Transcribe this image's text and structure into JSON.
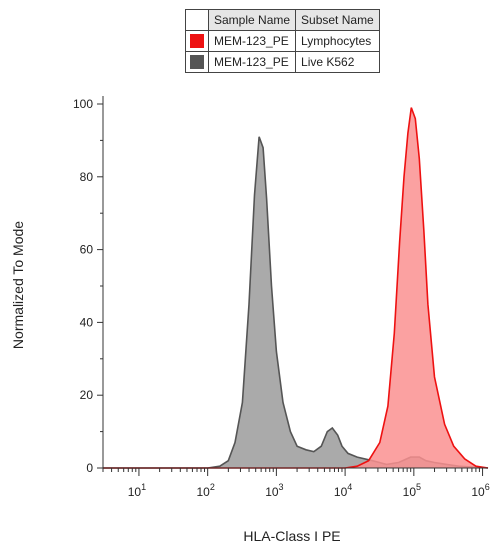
{
  "legend": {
    "headers": [
      "Sample Name",
      "Subset Name"
    ],
    "rows": [
      {
        "color": "#ee1111",
        "sample": "MEM-123_PE",
        "subset": "Lymphocytes"
      },
      {
        "color": "#555555",
        "sample": "MEM-123_PE",
        "subset": "Live K562"
      }
    ]
  },
  "chart_data": {
    "type": "area",
    "xlabel": "HLA-Class I PE",
    "ylabel": "Normalized To Mode",
    "xscale": "log",
    "xlim": [
      3,
      1200000
    ],
    "ylim": [
      0,
      100
    ],
    "yticks": [
      0,
      20,
      40,
      60,
      80,
      100
    ],
    "xticks": [
      {
        "value": 10,
        "base": "10",
        "exp": "1"
      },
      {
        "value": 100,
        "base": "10",
        "exp": "2"
      },
      {
        "value": 1000,
        "base": "10",
        "exp": "3"
      },
      {
        "value": 10000,
        "base": "10",
        "exp": "4"
      },
      {
        "value": 100000,
        "base": "10",
        "exp": "5"
      },
      {
        "value": 1000000,
        "base": "10",
        "exp": "6"
      }
    ],
    "grid": false,
    "series": [
      {
        "name": "Live K562",
        "fill": "#aaaaaa",
        "stroke": "#555555",
        "points": [
          [
            3,
            0
          ],
          [
            100,
            0
          ],
          [
            150,
            0.5
          ],
          [
            200,
            2
          ],
          [
            250,
            7
          ],
          [
            320,
            18
          ],
          [
            400,
            45
          ],
          [
            480,
            75
          ],
          [
            560,
            91
          ],
          [
            640,
            88
          ],
          [
            720,
            74
          ],
          [
            850,
            50
          ],
          [
            1000,
            32
          ],
          [
            1250,
            18
          ],
          [
            1600,
            10
          ],
          [
            2000,
            6
          ],
          [
            2700,
            5
          ],
          [
            3500,
            4.5
          ],
          [
            4500,
            6
          ],
          [
            5500,
            10
          ],
          [
            6500,
            11
          ],
          [
            7800,
            9
          ],
          [
            9000,
            6
          ],
          [
            11000,
            4
          ],
          [
            15000,
            3
          ],
          [
            25000,
            2
          ],
          [
            40000,
            1
          ],
          [
            60000,
            1.5
          ],
          [
            90000,
            3
          ],
          [
            120000,
            3
          ],
          [
            150000,
            2
          ],
          [
            200000,
            1.5
          ],
          [
            300000,
            1
          ],
          [
            450000,
            0.5
          ],
          [
            1200000,
            0
          ]
        ]
      },
      {
        "name": "Lymphocytes",
        "fill": "#fa9191",
        "stroke": "#ee1111",
        "points": [
          [
            3,
            0
          ],
          [
            10000,
            0
          ],
          [
            15000,
            0.5
          ],
          [
            22000,
            2
          ],
          [
            32000,
            7
          ],
          [
            42000,
            17
          ],
          [
            52000,
            37
          ],
          [
            62000,
            62
          ],
          [
            72000,
            80
          ],
          [
            82000,
            92
          ],
          [
            92000,
            99
          ],
          [
            105000,
            96
          ],
          [
            120000,
            85
          ],
          [
            140000,
            65
          ],
          [
            160000,
            45
          ],
          [
            200000,
            25
          ],
          [
            280000,
            12
          ],
          [
            380000,
            6
          ],
          [
            550000,
            2.5
          ],
          [
            800000,
            0.5
          ],
          [
            1200000,
            0
          ]
        ]
      }
    ]
  }
}
